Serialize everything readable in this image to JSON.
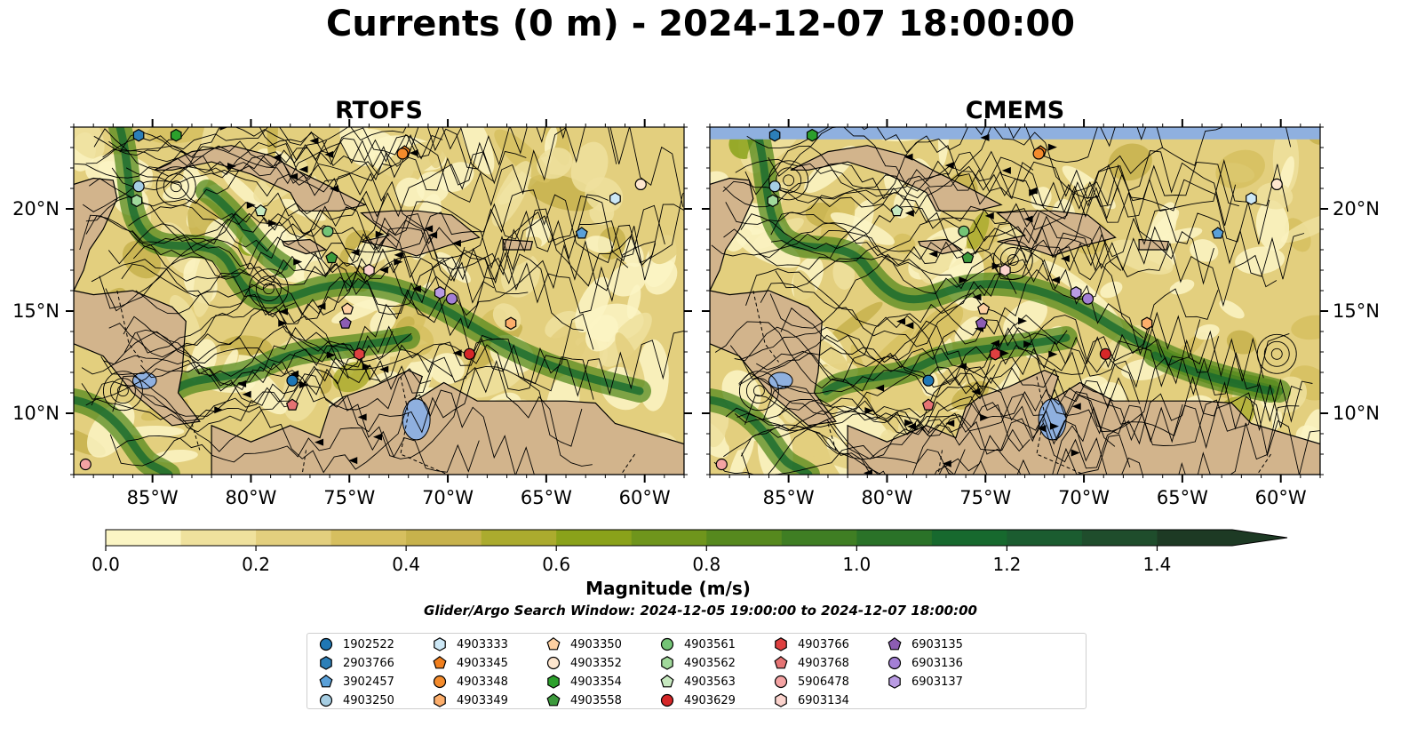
{
  "figure_title": "Currents (0 m) - 2024-12-07 18:00:00",
  "colorbar": {
    "label": "Magnitude (m/s)",
    "ticks": [
      "0.0",
      "0.2",
      "0.4",
      "0.6",
      "0.8",
      "1.0",
      "1.2",
      "1.4"
    ],
    "levels": [
      0.0,
      0.1,
      0.2,
      0.3,
      0.4,
      0.5,
      0.6,
      0.7,
      0.8,
      0.9,
      1.0,
      1.1,
      1.2,
      1.3,
      1.4,
      1.5
    ],
    "extend": "max",
    "colors": [
      "#fbf5c4",
      "#efe19d",
      "#e3cf7e",
      "#d6bf5f",
      "#c7b24c",
      "#abab2e",
      "#8aa21a",
      "#6f951c",
      "#56891e",
      "#3f7e23",
      "#2a7228",
      "#17692e",
      "#1b5c30",
      "#1f4d2c",
      "#1d3a24"
    ]
  },
  "search_window_note": "Glider/Argo Search Window: 2024-12-05 19:00:00 to 2024-12-07 18:00:00",
  "chart_data": [
    {
      "type": "heatmap",
      "title": "RTOFS",
      "xlim": [
        -89,
        -58
      ],
      "ylim": [
        7,
        24
      ],
      "x_ticks": [
        "85°W",
        "80°W",
        "75°W",
        "70°W",
        "65°W",
        "60°W"
      ],
      "y_ticks": [
        "20°N",
        "15°N",
        "10°N"
      ],
      "y_tick_side": "left",
      "grid": false,
      "no_data_band": false
    },
    {
      "type": "heatmap",
      "title": "CMEMS",
      "xlim": [
        -89,
        -58
      ],
      "ylim": [
        7,
        24
      ],
      "x_ticks": [
        "85°W",
        "80°W",
        "75°W",
        "70°W",
        "65°W",
        "60°W"
      ],
      "y_ticks": [
        "20°N",
        "15°N",
        "10°N"
      ],
      "y_tick_side": "right",
      "grid": false,
      "no_data_band": true
    }
  ],
  "floats": [
    {
      "id": "1902522",
      "color": "#1f77b4",
      "marker": "circle",
      "lon": -77.9,
      "lat": 11.6
    },
    {
      "id": "2903766",
      "color": "#2c7fb8",
      "marker": "hexagon",
      "lon": -85.7,
      "lat": 23.6
    },
    {
      "id": "3902457",
      "color": "#5aa0d8",
      "marker": "pentagon",
      "lon": -63.2,
      "lat": 18.8
    },
    {
      "id": "4903250",
      "color": "#a6cee3",
      "marker": "circle",
      "lon": -85.7,
      "lat": 21.1
    },
    {
      "id": "4903333",
      "color": "#cde8f6",
      "marker": "hexagon",
      "lon": -61.5,
      "lat": 20.5
    },
    {
      "id": "4903345",
      "color": "#f07f1e",
      "marker": "pentagon",
      "lon": -72.2,
      "lat": 22.8
    },
    {
      "id": "4903348",
      "color": "#f48b2c",
      "marker": "circle",
      "lon": -72.3,
      "lat": 22.7
    },
    {
      "id": "4903349",
      "color": "#fdae6b",
      "marker": "hexagon",
      "lon": -66.8,
      "lat": 14.4
    },
    {
      "id": "4903350",
      "color": "#fdd0a2",
      "marker": "pentagon",
      "lon": -75.1,
      "lat": 15.1
    },
    {
      "id": "4903352",
      "color": "#fee6ce",
      "marker": "circle",
      "lon": -60.2,
      "lat": 21.2
    },
    {
      "id": "4903354",
      "color": "#2ca02c",
      "marker": "hexagon",
      "lon": -83.8,
      "lat": 23.6
    },
    {
      "id": "4903558",
      "color": "#3c9a3c",
      "marker": "pentagon",
      "lon": -75.9,
      "lat": 17.6
    },
    {
      "id": "4903561",
      "color": "#74c476",
      "marker": "circle",
      "lon": -76.1,
      "lat": 18.9
    },
    {
      "id": "4903562",
      "color": "#a1d99b",
      "marker": "hexagon",
      "lon": -85.8,
      "lat": 20.4
    },
    {
      "id": "4903563",
      "color": "#c7e9c0",
      "marker": "pentagon",
      "lon": -79.5,
      "lat": 19.9
    },
    {
      "id": "4903629",
      "color": "#d62728",
      "marker": "circle",
      "lon": -68.9,
      "lat": 12.9
    },
    {
      "id": "4903766",
      "color": "#de4040",
      "marker": "hexagon",
      "lon": -74.5,
      "lat": 12.9
    },
    {
      "id": "4903768",
      "color": "#e57373",
      "marker": "pentagon",
      "lon": -77.9,
      "lat": 10.4
    },
    {
      "id": "5906478",
      "color": "#f4a3a3",
      "marker": "circle",
      "lon": -88.4,
      "lat": 7.5
    },
    {
      "id": "6903134",
      "color": "#fbd3cd",
      "marker": "hexagon",
      "lon": -74.0,
      "lat": 17.0
    },
    {
      "id": "6903135",
      "color": "#8c5db3",
      "marker": "pentagon",
      "lon": -75.2,
      "lat": 14.4
    },
    {
      "id": "6903136",
      "color": "#a47fd6",
      "marker": "circle",
      "lon": -69.8,
      "lat": 15.6
    },
    {
      "id": "6903137",
      "color": "#b99be3",
      "marker": "hexagon",
      "lon": -70.4,
      "lat": 15.9
    }
  ],
  "map_colors": {
    "land": "#d2b48c",
    "lake": "#8fb0df",
    "band": "#8fb0df",
    "coast": "#000000",
    "river": "#9fb8d8"
  }
}
